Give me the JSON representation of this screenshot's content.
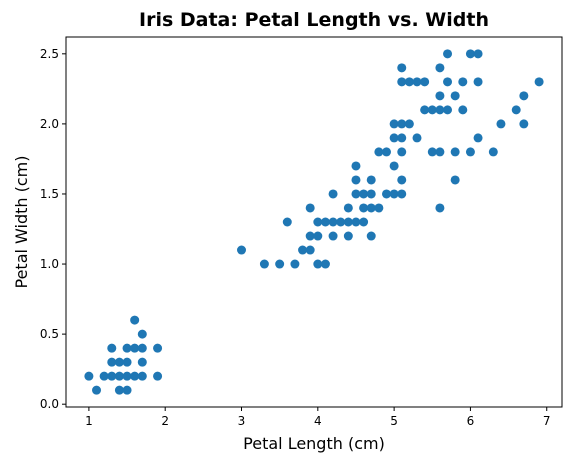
{
  "chart_data": {
    "type": "scatter",
    "title": "Iris Data: Petal Length vs. Width",
    "xlabel": "Petal Length (cm)",
    "ylabel": "Petal Width (cm)",
    "xlim": [
      0.7,
      7.2
    ],
    "ylim": [
      -0.02,
      2.62
    ],
    "xticks": [
      "1",
      "2",
      "3",
      "4",
      "5",
      "6",
      "7"
    ],
    "yticks": [
      "0.0",
      "0.5",
      "1.0",
      "1.5",
      "2.0",
      "2.5"
    ],
    "grid": false,
    "marker_color": "#1f77b4",
    "points": [
      [
        1.0,
        0.2
      ],
      [
        1.1,
        0.1
      ],
      [
        1.2,
        0.2
      ],
      [
        1.3,
        0.2
      ],
      [
        1.3,
        0.3
      ],
      [
        1.3,
        0.4
      ],
      [
        1.4,
        0.1
      ],
      [
        1.4,
        0.2
      ],
      [
        1.4,
        0.3
      ],
      [
        1.5,
        0.1
      ],
      [
        1.5,
        0.2
      ],
      [
        1.5,
        0.3
      ],
      [
        1.5,
        0.4
      ],
      [
        1.6,
        0.2
      ],
      [
        1.6,
        0.4
      ],
      [
        1.6,
        0.6
      ],
      [
        1.7,
        0.2
      ],
      [
        1.7,
        0.3
      ],
      [
        1.7,
        0.4
      ],
      [
        1.7,
        0.5
      ],
      [
        1.9,
        0.2
      ],
      [
        1.9,
        0.4
      ],
      [
        3.0,
        1.1
      ],
      [
        3.3,
        1.0
      ],
      [
        3.5,
        1.0
      ],
      [
        3.6,
        1.3
      ],
      [
        3.7,
        1.0
      ],
      [
        3.8,
        1.1
      ],
      [
        3.9,
        1.1
      ],
      [
        3.9,
        1.2
      ],
      [
        3.9,
        1.4
      ],
      [
        4.0,
        1.0
      ],
      [
        4.0,
        1.2
      ],
      [
        4.0,
        1.3
      ],
      [
        4.1,
        1.0
      ],
      [
        4.1,
        1.3
      ],
      [
        4.2,
        1.2
      ],
      [
        4.2,
        1.3
      ],
      [
        4.2,
        1.5
      ],
      [
        4.3,
        1.3
      ],
      [
        4.4,
        1.2
      ],
      [
        4.4,
        1.3
      ],
      [
        4.4,
        1.4
      ],
      [
        4.5,
        1.3
      ],
      [
        4.5,
        1.5
      ],
      [
        4.5,
        1.6
      ],
      [
        4.5,
        1.7
      ],
      [
        4.6,
        1.3
      ],
      [
        4.6,
        1.4
      ],
      [
        4.6,
        1.5
      ],
      [
        4.7,
        1.2
      ],
      [
        4.7,
        1.4
      ],
      [
        4.7,
        1.5
      ],
      [
        4.7,
        1.6
      ],
      [
        4.8,
        1.4
      ],
      [
        4.8,
        1.8
      ],
      [
        4.9,
        1.5
      ],
      [
        4.9,
        1.8
      ],
      [
        5.0,
        1.5
      ],
      [
        5.0,
        1.7
      ],
      [
        5.0,
        1.9
      ],
      [
        5.0,
        2.0
      ],
      [
        5.1,
        1.5
      ],
      [
        5.1,
        1.6
      ],
      [
        5.1,
        1.8
      ],
      [
        5.1,
        1.9
      ],
      [
        5.1,
        2.0
      ],
      [
        5.1,
        2.3
      ],
      [
        5.1,
        2.4
      ],
      [
        5.2,
        2.0
      ],
      [
        5.2,
        2.3
      ],
      [
        5.3,
        1.9
      ],
      [
        5.3,
        2.3
      ],
      [
        5.4,
        2.1
      ],
      [
        5.4,
        2.3
      ],
      [
        5.5,
        1.8
      ],
      [
        5.5,
        2.1
      ],
      [
        5.6,
        1.4
      ],
      [
        5.6,
        1.8
      ],
      [
        5.6,
        2.1
      ],
      [
        5.6,
        2.2
      ],
      [
        5.6,
        2.4
      ],
      [
        5.7,
        2.1
      ],
      [
        5.7,
        2.3
      ],
      [
        5.7,
        2.5
      ],
      [
        5.8,
        1.6
      ],
      [
        5.8,
        1.8
      ],
      [
        5.8,
        2.2
      ],
      [
        5.9,
        2.1
      ],
      [
        5.9,
        2.3
      ],
      [
        6.0,
        1.8
      ],
      [
        6.0,
        2.5
      ],
      [
        6.1,
        1.9
      ],
      [
        6.1,
        2.3
      ],
      [
        6.1,
        2.5
      ],
      [
        6.3,
        1.8
      ],
      [
        6.4,
        2.0
      ],
      [
        6.6,
        2.1
      ],
      [
        6.7,
        2.0
      ],
      [
        6.7,
        2.2
      ],
      [
        6.9,
        2.3
      ]
    ]
  }
}
